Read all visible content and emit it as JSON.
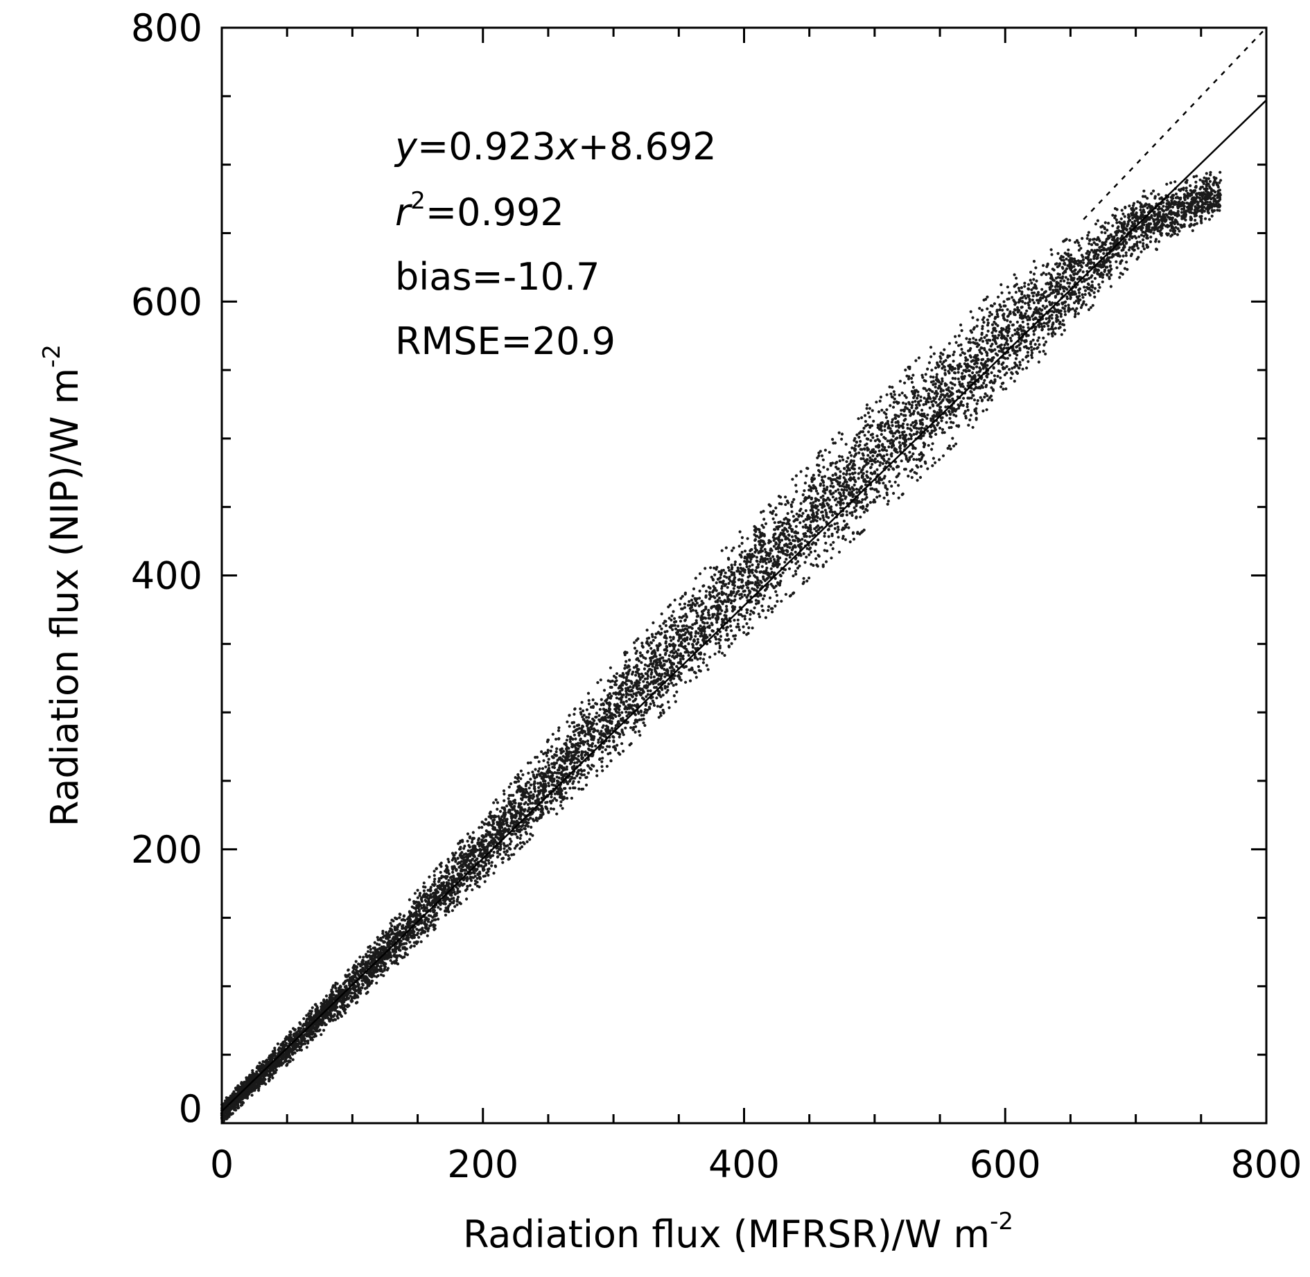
{
  "chart_data": {
    "type": "scatter",
    "title": "",
    "xlabel": {
      "text": "Radiation flux (MFRSR)/W m",
      "superscript": "-2"
    },
    "ylabel": {
      "text": "Radiation flux (NIP)/W m",
      "superscript": "-2"
    },
    "xlim": [
      0,
      800
    ],
    "ylim": [
      0,
      800
    ],
    "x_major_ticks": [
      0,
      200,
      400,
      600,
      800
    ],
    "y_major_ticks": [
      0,
      200,
      400,
      600,
      800
    ],
    "x_tick_labels": [
      "0",
      "200",
      "400",
      "600",
      "800"
    ],
    "y_tick_labels": [
      "0",
      "200",
      "400",
      "600",
      "800"
    ],
    "minor_tick_step": 50,
    "grid": false,
    "annotations": {
      "equation": {
        "y_var": "y",
        "mid": "=0.923",
        "x_var": "x",
        "tail": "+8.692"
      },
      "r2": {
        "var": "r",
        "superscript": "2",
        "value": "=0.992"
      },
      "bias": "bias=-10.7",
      "rmse": "RMSE=20.9"
    },
    "fit_line": {
      "slope": 0.923,
      "intercept": 8.692,
      "style": "solid",
      "x_range": [
        0,
        800
      ]
    },
    "reference_line": {
      "slope": 1,
      "intercept": 0,
      "style": "dashed",
      "x_range": [
        660,
        800
      ]
    },
    "point_cloud": {
      "color": "#1a1a1a",
      "x_range": [
        0,
        765
      ],
      "envelope": [
        {
          "x": 0,
          "y_min": 0,
          "y_max": 15
        },
        {
          "x": 100,
          "y_min": 85,
          "y_max": 115
        },
        {
          "x": 200,
          "y_min": 175,
          "y_max": 225
        },
        {
          "x": 300,
          "y_min": 265,
          "y_max": 335
        },
        {
          "x": 400,
          "y_min": 355,
          "y_max": 435
        },
        {
          "x": 500,
          "y_min": 440,
          "y_max": 530
        },
        {
          "x": 600,
          "y_min": 530,
          "y_max": 615
        },
        {
          "x": 700,
          "y_min": 630,
          "y_max": 680
        },
        {
          "x": 760,
          "y_min": 660,
          "y_max": 695
        }
      ]
    }
  }
}
